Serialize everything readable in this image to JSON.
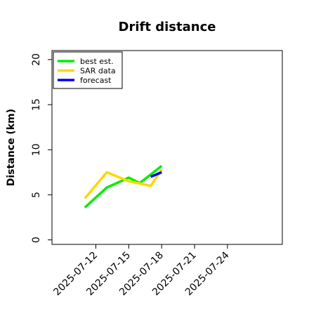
{
  "chart_data": {
    "type": "line",
    "title": "Drift distance",
    "xlabel": "",
    "ylabel": "Distance (km)",
    "x_ticks": [
      "2025-07-12",
      "2025-07-15",
      "2025-07-18",
      "2025-07-21",
      "2025-07-24"
    ],
    "y_ticks": [
      "0",
      "5",
      "10",
      "15",
      "20"
    ],
    "xlim": [
      "2025-07-08",
      "2025-07-29"
    ],
    "ylim": [
      -0.5,
      21
    ],
    "grid": false,
    "legend_position": "top-left",
    "series": [
      {
        "name": "best est.",
        "color": "#00ee00",
        "points": [
          {
            "x": "2025-07-11",
            "y": 3.6
          },
          {
            "x": "2025-07-13",
            "y": 5.8
          },
          {
            "x": "2025-07-15",
            "y": 6.9
          },
          {
            "x": "2025-07-16",
            "y": 6.3
          },
          {
            "x": "2025-07-18",
            "y": 8.2
          }
        ]
      },
      {
        "name": "SAR data",
        "color": "#ffd700",
        "points": [
          {
            "x": "2025-07-11",
            "y": 4.6
          },
          {
            "x": "2025-07-13",
            "y": 7.5
          },
          {
            "x": "2025-07-15",
            "y": 6.5
          },
          {
            "x": "2025-07-17",
            "y": 6.0
          },
          {
            "x": "2025-07-18",
            "y": 7.8
          }
        ]
      },
      {
        "name": "forecast",
        "color": "#0000ee",
        "points": [
          {
            "x": "2025-07-17",
            "y": 7.0
          },
          {
            "x": "2025-07-18",
            "y": 7.5
          }
        ]
      }
    ]
  }
}
